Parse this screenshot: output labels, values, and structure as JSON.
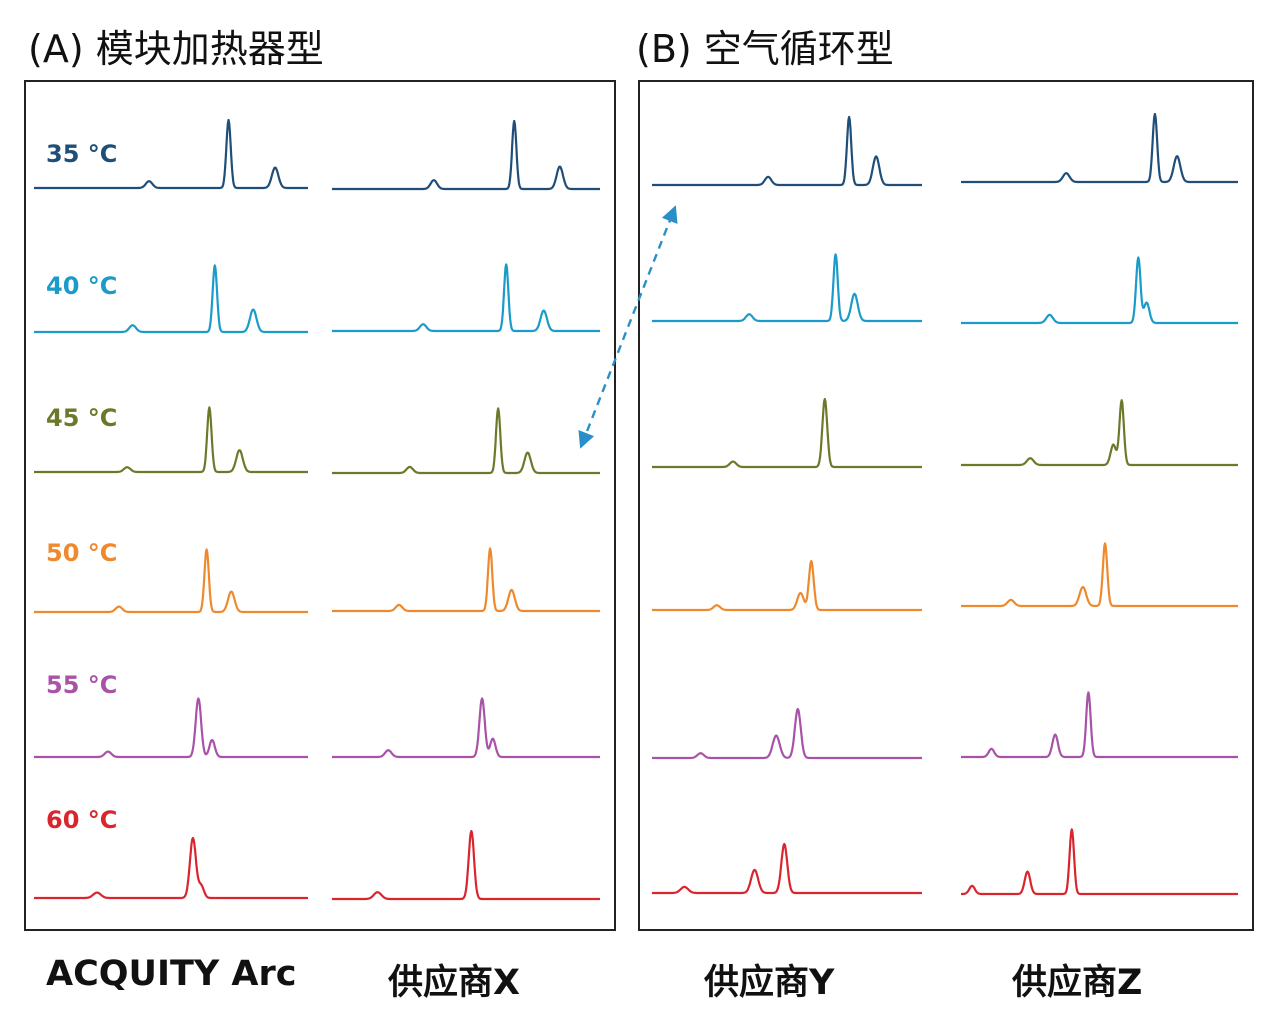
{
  "titles": {
    "panel_a": "(A) 模块加热器型",
    "panel_b": "(B) 空气循环型"
  },
  "chart_data": {
    "type": "line",
    "temperatures": [
      {
        "label": "35 °C",
        "color": "#1f4e79"
      },
      {
        "label": "40 °C",
        "color": "#1b9bc9"
      },
      {
        "label": "45 °C",
        "color": "#6b7a2a"
      },
      {
        "label": "50 °C",
        "color": "#ee8a2e"
      },
      {
        "label": "55 °C",
        "color": "#a953a8"
      },
      {
        "label": "60 °C",
        "color": "#d9262e"
      }
    ],
    "columns": [
      {
        "label": "ACQUITY Arc",
        "panel": "A"
      },
      {
        "label": "供应商X",
        "panel": "A"
      },
      {
        "label": "供应商Y",
        "panel": "B"
      },
      {
        "label": "供应商Z",
        "panel": "B"
      }
    ],
    "peaks": [
      [
        [
          [
            0.42,
            0.1,
            0.012
          ],
          [
            0.71,
            1.0,
            0.008
          ],
          [
            0.88,
            0.3,
            0.012
          ]
        ],
        [
          [
            0.36,
            0.1,
            0.012
          ],
          [
            0.66,
            0.98,
            0.008
          ],
          [
            0.8,
            0.33,
            0.012
          ]
        ],
        [
          [
            0.34,
            0.07,
            0.012
          ],
          [
            0.64,
            0.95,
            0.008
          ],
          [
            0.75,
            0.32,
            0.012
          ]
        ],
        [
          [
            0.31,
            0.08,
            0.012
          ],
          [
            0.63,
            0.92,
            0.008
          ],
          [
            0.72,
            0.3,
            0.012
          ]
        ],
        [
          [
            0.27,
            0.08,
            0.012
          ],
          [
            0.6,
            0.86,
            0.01
          ],
          [
            0.65,
            0.25,
            0.01
          ]
        ],
        [
          [
            0.23,
            0.08,
            0.014
          ],
          [
            0.58,
            0.88,
            0.011
          ],
          [
            0.61,
            0.18,
            0.01
          ]
        ]
      ],
      [
        [
          [
            0.38,
            0.13,
            0.012
          ],
          [
            0.68,
            1.0,
            0.008
          ],
          [
            0.85,
            0.33,
            0.012
          ]
        ],
        [
          [
            0.34,
            0.1,
            0.012
          ],
          [
            0.65,
            0.98,
            0.008
          ],
          [
            0.79,
            0.3,
            0.012
          ]
        ],
        [
          [
            0.29,
            0.09,
            0.012
          ],
          [
            0.62,
            0.95,
            0.008
          ],
          [
            0.73,
            0.3,
            0.012
          ]
        ],
        [
          [
            0.25,
            0.09,
            0.012
          ],
          [
            0.59,
            0.92,
            0.008
          ],
          [
            0.67,
            0.31,
            0.012
          ]
        ],
        [
          [
            0.21,
            0.1,
            0.012
          ],
          [
            0.56,
            0.86,
            0.01
          ],
          [
            0.6,
            0.27,
            0.01
          ]
        ],
        [
          [
            0.17,
            0.1,
            0.014
          ],
          [
            0.52,
            1.0,
            0.01
          ]
        ]
      ],
      [
        [
          [
            0.43,
            0.12,
            0.012
          ],
          [
            0.73,
            1.0,
            0.008
          ],
          [
            0.83,
            0.42,
            0.012
          ]
        ],
        [
          [
            0.36,
            0.1,
            0.012
          ],
          [
            0.68,
            0.98,
            0.008
          ],
          [
            0.75,
            0.4,
            0.012
          ]
        ],
        [
          [
            0.3,
            0.08,
            0.012
          ],
          [
            0.64,
            1.0,
            0.009
          ]
        ],
        [
          [
            0.24,
            0.07,
            0.012
          ],
          [
            0.55,
            0.25,
            0.012
          ],
          [
            0.59,
            0.72,
            0.009
          ]
        ],
        [
          [
            0.18,
            0.07,
            0.012
          ],
          [
            0.46,
            0.33,
            0.013
          ],
          [
            0.54,
            0.72,
            0.011
          ]
        ],
        [
          [
            0.12,
            0.09,
            0.014
          ],
          [
            0.38,
            0.34,
            0.013
          ],
          [
            0.49,
            0.72,
            0.011
          ]
        ]
      ],
      [
        [
          [
            0.38,
            0.13,
            0.012
          ],
          [
            0.7,
            1.0,
            0.008
          ],
          [
            0.78,
            0.38,
            0.012
          ]
        ],
        [
          [
            0.32,
            0.12,
            0.012
          ],
          [
            0.64,
            0.96,
            0.008
          ],
          [
            0.67,
            0.3,
            0.01
          ]
        ],
        [
          [
            0.25,
            0.1,
            0.012
          ],
          [
            0.55,
            0.3,
            0.01
          ],
          [
            0.58,
            0.95,
            0.008
          ]
        ],
        [
          [
            0.18,
            0.09,
            0.012
          ],
          [
            0.44,
            0.28,
            0.012
          ],
          [
            0.52,
            0.92,
            0.008
          ]
        ],
        [
          [
            0.11,
            0.12,
            0.01
          ],
          [
            0.34,
            0.33,
            0.01
          ],
          [
            0.46,
            0.95,
            0.008
          ]
        ],
        [
          [
            0.04,
            0.12,
            0.01
          ],
          [
            0.24,
            0.33,
            0.01
          ],
          [
            0.4,
            0.95,
            0.008
          ]
        ]
      ]
    ]
  }
}
